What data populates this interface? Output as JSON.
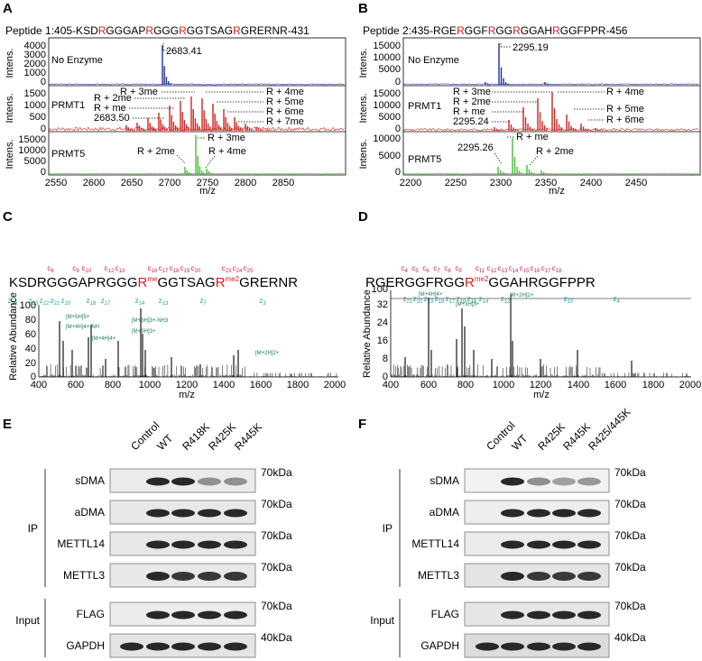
{
  "panel_labels": {
    "A": "A",
    "B": "B",
    "C": "C",
    "D": "D",
    "E": "E",
    "F": "F"
  },
  "colors": {
    "red": "#d62020",
    "blue": "#1f2f9c",
    "green": "#49b83a",
    "magenta": "#d01e62",
    "teal": "#27a4a2",
    "darkgreen": "#1a7a4a",
    "spectrum": "#000000"
  },
  "A": {
    "title_prefix": "Peptide 1:405-KSD",
    "seq_parts": [
      "Peptide 1:405-KSD",
      "R",
      "GGGAP",
      "R",
      "GGG",
      "R",
      "GGTSAG",
      "R",
      "GRERNR-431"
    ],
    "ylabel": "Intens.",
    "xlabel": "m/z",
    "x_ticks": [
      "2550",
      "2600",
      "2650",
      "2700",
      "2750",
      "2800",
      "2850"
    ],
    "tracks": [
      {
        "name": "No Enzyme",
        "yticks": [
          "4000",
          "3000",
          "2000",
          "1000",
          "0"
        ],
        "annotations": [
          "2683.41"
        ]
      },
      {
        "name": "PRMT1",
        "yticks": [
          "1500",
          "1000",
          "500",
          "0"
        ],
        "annotations": [
          "R + 3me",
          "R + 2me",
          "R + me",
          "2683.50",
          "R + 4me",
          "R + 5me",
          "R + 6me",
          "R + 7me"
        ]
      },
      {
        "name": "PRMT5",
        "yticks": [
          "15000",
          "10000",
          "5000",
          "0"
        ],
        "annotations": [
          "R + 3me",
          "R + 2me",
          "R + 4me"
        ]
      }
    ]
  },
  "B": {
    "seq_parts": [
      "Peptide 2:435-RGE",
      "R",
      "GGF",
      "R",
      "GG",
      "R",
      "GGAH",
      "R",
      "GGFPPR-456"
    ],
    "ylabel": "Intens.",
    "xlabel": "m/z",
    "x_ticks": [
      "2200",
      "2250",
      "2300",
      "2350",
      "2400",
      "2450"
    ],
    "tracks": [
      {
        "name": "No Enzyme",
        "yticks": [
          "15000",
          "10000",
          "5000",
          "0"
        ],
        "annotations": [
          "2295.19"
        ]
      },
      {
        "name": "PRMT1",
        "yticks": [
          "15000",
          "10000",
          "5000",
          "0"
        ],
        "annotations": [
          "R + 3me",
          "R + 2me",
          "R + me",
          "2295.24",
          "R + 4me",
          "R + 5me",
          "R + 6me"
        ]
      },
      {
        "name": "PRMT5",
        "yticks": [
          "10000",
          "5000",
          "0"
        ],
        "annotations": [
          "R + me",
          "2295.26",
          "R + 2me"
        ]
      }
    ]
  },
  "C": {
    "sequence": "KSDRGGGAPRGGGR",
    "seq_a": "KSDRGGGAPRGGG",
    "mod1": "R",
    "mod1_sup": "me",
    "seq_b": "GGTSAG",
    "mod2": "R",
    "mod2_sup": "me2",
    "seq_c": "GRERNR",
    "c_ions": [
      "c6",
      "c9",
      "c10",
      "c12",
      "c13",
      "c16",
      "c17",
      "c18",
      "c19",
      "c20",
      "c23",
      "c24",
      "c25"
    ],
    "z_ions": [
      "z25",
      "z23",
      "z22",
      "z21",
      "z20",
      "z18",
      "z17",
      "z14",
      "z13",
      "z7",
      "z3"
    ],
    "ylabel": "Relative Abundance",
    "xlabel": "m/z",
    "x_ticks": [
      "400",
      "600",
      "800",
      "1000",
      "1200",
      "1400",
      "1600",
      "1800",
      "2000"
    ],
    "y_ticks": [
      "100",
      "80",
      "60",
      "40",
      "20",
      "0"
    ],
    "peak_labels": [
      "[M+5H]5+",
      "[M+4H]4+-NH",
      "[M+4H]4+",
      "[M+3H]3+-NH3",
      "[M+3H]3+",
      "[M+2H]2+"
    ]
  },
  "D": {
    "seq_a": "RGERGGFRGG",
    "mod1": "R",
    "mod1_sup": "me2",
    "seq_b": "GGAHRGGFPPR",
    "c_ions": [
      "c4",
      "c5",
      "c6",
      "c7",
      "c8",
      "c9",
      "c11",
      "c12",
      "c13",
      "c14",
      "c15",
      "c16",
      "c17",
      "c18"
    ],
    "z_ions": [
      "z21",
      "z20",
      "z19",
      "z18",
      "z17",
      "z16",
      "z15",
      "z14",
      "z12",
      "z10",
      "z4"
    ],
    "ylabel": "Relative Abundance",
    "xlabel": "m/z",
    "x_ticks": [
      "400",
      "600",
      "800",
      "1000",
      "1200",
      "1400",
      "1600",
      "1800",
      "2000"
    ],
    "y_ticks": [
      "100",
      "32",
      "24",
      "16",
      "8",
      "0"
    ],
    "peak_labels": [
      "[M+4H]4+",
      "[M+3H]3+",
      "[M+2H]2+"
    ]
  },
  "E": {
    "lanes": [
      "Control",
      "WT",
      "R418K",
      "R425K",
      "R445K"
    ],
    "rows": [
      "sDMA",
      "aDMA",
      "METTL14",
      "METTL3",
      "FLAG",
      "GAPDH"
    ],
    "mw": [
      "70kDa",
      "70kDa",
      "70kDa",
      "70kDa",
      "70kDa",
      "40kDa"
    ],
    "group_ip": "IP",
    "group_input": "Input",
    "sdma_intensity": [
      0,
      1.0,
      1.0,
      0.35,
      0.35
    ]
  },
  "F": {
    "lanes": [
      "Control",
      "WT",
      "R425K",
      "R445K",
      "R425/445K"
    ],
    "rows": [
      "sDMA",
      "aDMA",
      "METTL14",
      "METTL3",
      "FLAG",
      "GAPDH"
    ],
    "mw": [
      "70kDa",
      "70kDa",
      "70kDa",
      "70kDa",
      "70kDa",
      "40kDa"
    ],
    "group_ip": "IP",
    "group_input": "Input",
    "sdma_intensity": [
      0,
      1.0,
      0.35,
      0.25,
      0.3
    ]
  }
}
